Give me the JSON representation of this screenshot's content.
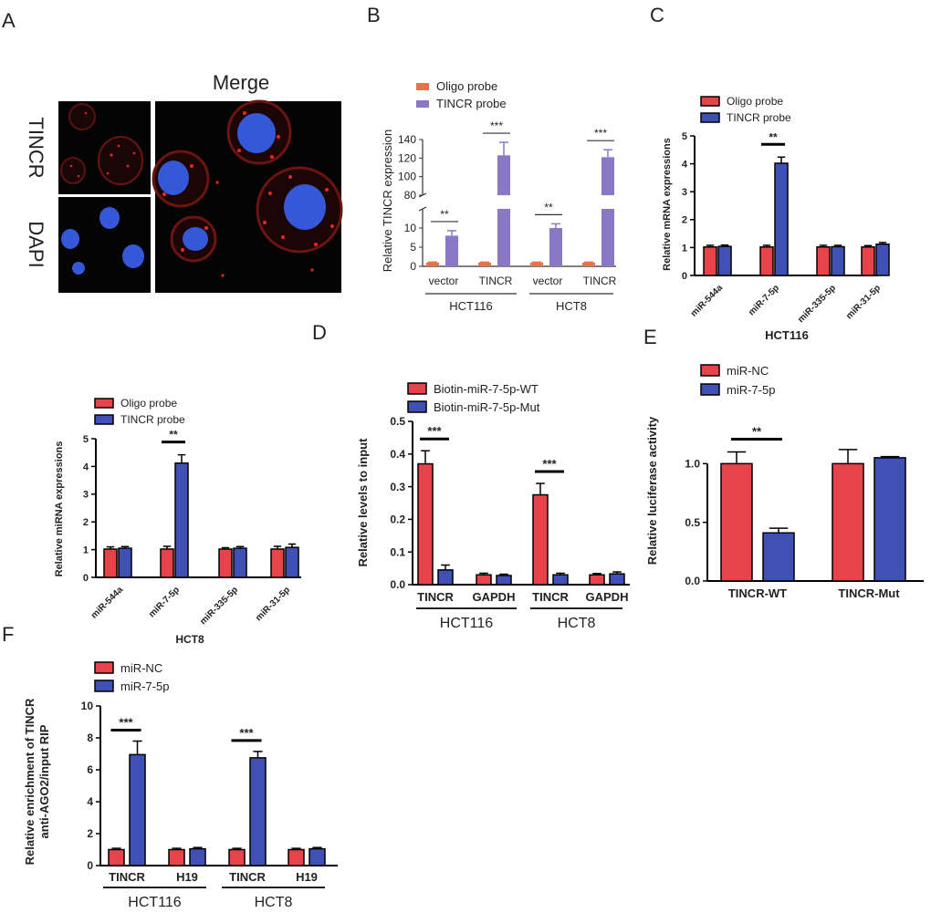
{
  "panel_labels": [
    "A",
    "B",
    "C",
    "D",
    "E",
    "F"
  ],
  "panel_a": {
    "top_label": "Merge",
    "row_labels": [
      "TINCR",
      "DAPI"
    ]
  },
  "colors": {
    "red": "#e8434a",
    "blue": "#3f51b5",
    "orange": "#e8734a",
    "purple": "#8a78c6",
    "nucleus": "#3458d8",
    "dots": "#d82424"
  },
  "chart_data": [
    {
      "panel": "B",
      "type": "bar",
      "ylabel": "Relative TINCR expression",
      "axis_break": true,
      "ylim_low": [
        0,
        15
      ],
      "ylim_high": [
        80,
        140
      ],
      "yticks_low": [
        0,
        5,
        10
      ],
      "yticks_high": [
        80,
        100,
        120,
        140
      ],
      "categories": [
        "vector",
        "TINCR",
        "vector",
        "TINCR"
      ],
      "groups": [
        "HCT116",
        "HCT8"
      ],
      "series": [
        {
          "name": "Oligo probe",
          "color": "orange",
          "values": [
            1,
            1,
            1,
            1
          ],
          "errors": [
            0.1,
            0.1,
            0.1,
            0.1
          ]
        },
        {
          "name": "TINCR probe",
          "color": "purple",
          "values": [
            8,
            123,
            10,
            121
          ],
          "errors": [
            1.3,
            14,
            1.1,
            8
          ]
        }
      ],
      "significance": [
        "**",
        "***",
        "**",
        "***"
      ]
    },
    {
      "panel": "C",
      "type": "bar",
      "ylabel": "Relative mRNA expressions",
      "xlabel": "HCT116",
      "ylim": [
        0,
        5
      ],
      "yticks": [
        0,
        1,
        2,
        3,
        4,
        5
      ],
      "categories": [
        "miR-544a",
        "miR-7-5p",
        "miR-335-5p",
        "miR-31-5p"
      ],
      "series": [
        {
          "name": "Oligo probe",
          "color": "red",
          "values": [
            1.02,
            1.02,
            1.02,
            1.02
          ],
          "errors": [
            0.06,
            0.06,
            0.06,
            0.05
          ]
        },
        {
          "name": "TINCR probe",
          "color": "blue",
          "values": [
            1.04,
            4.02,
            1.03,
            1.12
          ],
          "errors": [
            0.05,
            0.22,
            0.05,
            0.06
          ]
        }
      ],
      "significance": [
        "",
        "**",
        "",
        ""
      ]
    },
    {
      "panel": "C2",
      "type": "bar",
      "ylabel": "Relative miRNA expressions",
      "xlabel": "HCT8",
      "ylim": [
        0,
        5
      ],
      "yticks": [
        0,
        1,
        2,
        3,
        4,
        5
      ],
      "categories": [
        "miR-544a",
        "miR-7-5p",
        "miR-335-5p",
        "miR-31-5p"
      ],
      "series": [
        {
          "name": "Oligo probe",
          "color": "red",
          "values": [
            1.02,
            1.02,
            1.02,
            1.02
          ],
          "errors": [
            0.08,
            0.1,
            0.05,
            0.1
          ]
        },
        {
          "name": "TINCR probe",
          "color": "blue",
          "values": [
            1.05,
            4.12,
            1.05,
            1.08
          ],
          "errors": [
            0.06,
            0.3,
            0.06,
            0.12
          ]
        }
      ],
      "significance": [
        "",
        "**",
        "",
        ""
      ]
    },
    {
      "panel": "D",
      "type": "bar",
      "ylabel": "Relative levels to input",
      "ylim": [
        0,
        0.5
      ],
      "yticks": [
        0.0,
        0.1,
        0.2,
        0.3,
        0.4,
        0.5
      ],
      "categories": [
        "TINCR",
        "GAPDH",
        "TINCR",
        "GAPDH"
      ],
      "groups": [
        "HCT116",
        "HCT8"
      ],
      "series": [
        {
          "name": "Biotin-miR-7-5p-WT",
          "color": "red",
          "values": [
            0.37,
            0.03,
            0.275,
            0.03
          ],
          "errors": [
            0.04,
            0.005,
            0.035,
            0.004
          ]
        },
        {
          "name": "Biotin-miR-7-5p-Mut",
          "color": "blue",
          "values": [
            0.045,
            0.028,
            0.03,
            0.033
          ],
          "errors": [
            0.015,
            0.004,
            0.005,
            0.006
          ]
        }
      ],
      "significance": [
        "***",
        "",
        "***",
        ""
      ]
    },
    {
      "panel": "E",
      "type": "bar",
      "ylabel": "Relative luciferase activity",
      "ylim": [
        0,
        1.5
      ],
      "yticks": [
        0.0,
        0.5,
        1.0
      ],
      "categories": [
        "TINCR-WT",
        "TINCR-Mut"
      ],
      "series": [
        {
          "name": "miR-NC",
          "color": "red",
          "values": [
            1.0,
            1.0
          ],
          "errors": [
            0.1,
            0.12
          ]
        },
        {
          "name": "miR-7-5p",
          "color": "blue",
          "values": [
            0.41,
            1.05
          ],
          "errors": [
            0.04,
            0.01
          ]
        }
      ],
      "significance": [
        "**",
        ""
      ]
    },
    {
      "panel": "F",
      "type": "bar",
      "ylabel": "Relative enrichment of TINCR anti-AGO2/input RIP",
      "ylabel_lines": [
        "Relative enrichment of TINCR",
        "anti-AGO2/input RIP"
      ],
      "ylim": [
        0,
        10
      ],
      "yticks": [
        0,
        2,
        4,
        6,
        8,
        10
      ],
      "categories": [
        "TINCR",
        "H19",
        "TINCR",
        "H19"
      ],
      "groups": [
        "HCT116",
        "HCT8"
      ],
      "series": [
        {
          "name": "miR-NC",
          "color": "red",
          "values": [
            1.0,
            1.0,
            1.0,
            1.0
          ],
          "errors": [
            0.08,
            0.08,
            0.08,
            0.08
          ]
        },
        {
          "name": "miR-7-5p",
          "color": "blue",
          "values": [
            6.95,
            1.05,
            6.75,
            1.05
          ],
          "errors": [
            0.85,
            0.08,
            0.4,
            0.08
          ]
        }
      ],
      "significance": [
        "***",
        "",
        "***",
        ""
      ]
    }
  ]
}
